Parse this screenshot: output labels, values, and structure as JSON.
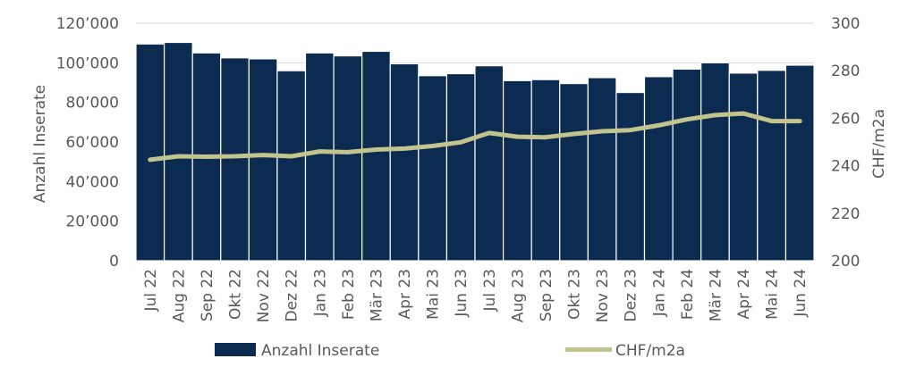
{
  "chart_data": {
    "type": "bar",
    "categories": [
      "Jul 22",
      "Aug 22",
      "Sep 22",
      "Okt 22",
      "Nov 22",
      "Dez 22",
      "Jan 23",
      "Feb 23",
      "Mär 23",
      "Apr 23",
      "Mai 23",
      "Jun 23",
      "Jul 23",
      "Aug 23",
      "Sep 23",
      "Okt 23",
      "Nov 23",
      "Dez 23",
      "Jan 24",
      "Feb 24",
      "Mär 24",
      "Apr 24",
      "Mai 24",
      "Jun 24"
    ],
    "series": [
      {
        "name": "Anzahl Inserate",
        "type": "bar",
        "axis": "left",
        "color": "#0b2b50",
        "values": [
          109500,
          110300,
          105000,
          102500,
          102000,
          96000,
          105000,
          103500,
          105800,
          99500,
          93500,
          94500,
          98500,
          91000,
          91500,
          89500,
          92500,
          85000,
          93000,
          96800,
          100000,
          94800,
          96200,
          98800
        ]
      },
      {
        "name": "CHF/m2a",
        "type": "line",
        "axis": "right",
        "color": "#c3c48d",
        "values": [
          242.5,
          244,
          243.8,
          244,
          244.5,
          244,
          246,
          245.7,
          246.8,
          247.2,
          248.3,
          249.9,
          253.8,
          252.2,
          252,
          253.4,
          254.5,
          255,
          257,
          259.5,
          261.3,
          262,
          258.8,
          258.8
        ]
      }
    ],
    "left_axis": {
      "label": "Anzahl Inserate",
      "ylim": [
        0,
        120000
      ],
      "ticks": [
        0,
        20000,
        40000,
        60000,
        80000,
        100000,
        120000
      ],
      "tick_labels": [
        "0",
        "20’000",
        "40’000",
        "60’000",
        "80’000",
        "100’000",
        "120’000"
      ]
    },
    "right_axis": {
      "label": "CHF/m2a",
      "ylim": [
        200,
        300
      ],
      "ticks": [
        200,
        220,
        240,
        260,
        280,
        300
      ],
      "tick_labels": [
        "200",
        "220",
        "240",
        "260",
        "280",
        "300"
      ]
    },
    "grid": true,
    "legend": {
      "position": "bottom",
      "entries": [
        "Anzahl Inserate",
        "CHF/m2a"
      ]
    }
  }
}
